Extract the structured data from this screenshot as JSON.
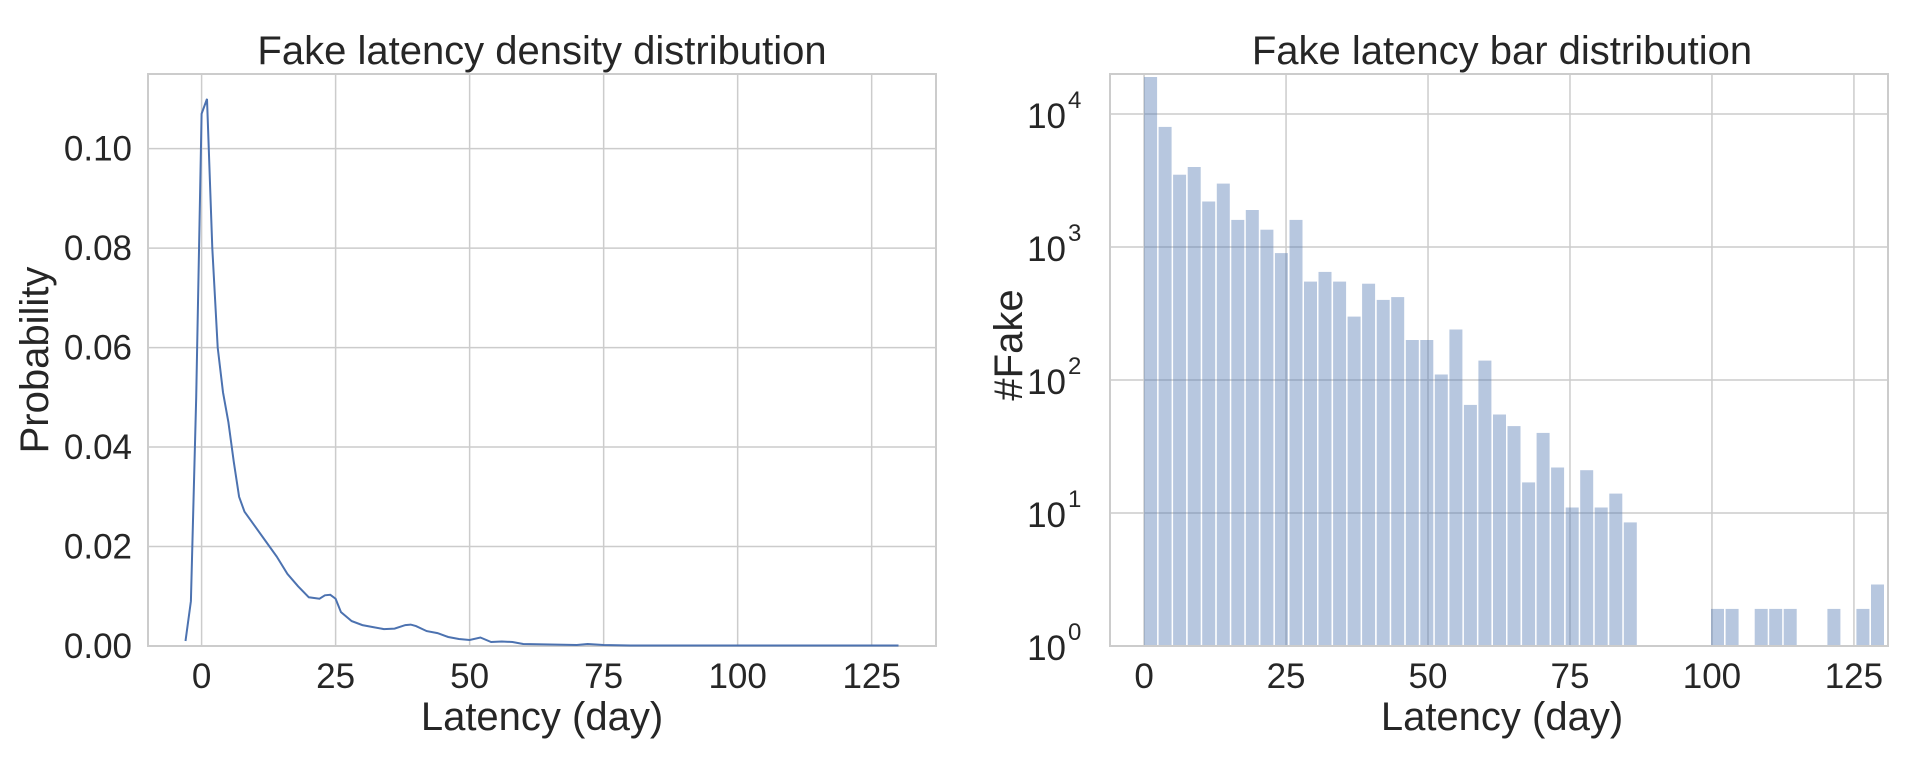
{
  "chart_data": [
    {
      "type": "line",
      "title": "Fake latency density distribution",
      "xlabel": "Latency (day)",
      "ylabel": "Probability",
      "xlim": [
        -10,
        137
      ],
      "ylim": [
        0,
        0.115
      ],
      "xticks": [
        0,
        25,
        50,
        75,
        100,
        125
      ],
      "yticks": [
        0.0,
        0.02,
        0.04,
        0.06,
        0.08,
        0.1
      ],
      "xtick_labels": [
        "0",
        "25",
        "50",
        "75",
        "100",
        "125"
      ],
      "ytick_labels": [
        "0.00",
        "0.02",
        "0.04",
        "0.06",
        "0.08",
        "0.10"
      ],
      "grid": true,
      "color": "#4c72b0",
      "series": [
        {
          "x": [
            -3,
            -2,
            -1,
            0,
            1,
            2,
            3,
            4,
            5,
            6,
            7,
            8,
            9,
            10,
            12,
            14,
            16,
            18,
            20,
            22,
            23,
            24,
            25,
            26,
            28,
            30,
            32,
            34,
            36,
            38,
            39,
            40,
            42,
            44,
            46,
            48,
            50,
            52,
            54,
            56,
            58,
            60,
            65,
            70,
            72,
            75,
            80,
            90,
            100,
            110,
            120,
            130
          ],
          "y": [
            0.001,
            0.009,
            0.05,
            0.107,
            0.11,
            0.08,
            0.06,
            0.051,
            0.045,
            0.037,
            0.03,
            0.027,
            0.0255,
            0.024,
            0.021,
            0.018,
            0.0145,
            0.012,
            0.0098,
            0.0095,
            0.0102,
            0.0103,
            0.0095,
            0.0068,
            0.005,
            0.0042,
            0.0038,
            0.0034,
            0.0035,
            0.0042,
            0.0043,
            0.004,
            0.003,
            0.0026,
            0.0018,
            0.0014,
            0.0012,
            0.0017,
            0.0008,
            0.0009,
            0.0008,
            0.0004,
            0.0003,
            0.0002,
            0.0004,
            0.0002,
            0.0001,
            0.0001,
            0.0001,
            0.0001,
            0.0001,
            0.0001
          ]
        }
      ]
    },
    {
      "type": "bar",
      "title": "Fake latency bar distribution",
      "xlabel": "Latency (day)",
      "ylabel": "#Fake",
      "y_scale": "log",
      "xlim": [
        -6,
        131
      ],
      "ylim": [
        1,
        20000
      ],
      "xticks": [
        0,
        25,
        50,
        75,
        100,
        125
      ],
      "xtick_labels": [
        "0",
        "25",
        "50",
        "75",
        "100",
        "125"
      ],
      "ytick_labels": [
        {
          "base": "10",
          "exp": "0"
        },
        {
          "base": "10",
          "exp": "1"
        },
        {
          "base": "10",
          "exp": "2"
        },
        {
          "base": "10",
          "exp": "3"
        },
        {
          "base": "10",
          "exp": "4"
        }
      ],
      "grid": true,
      "color": "#4c72b0",
      "bin_width": 2.56,
      "bin_start": 0,
      "values": [
        19000,
        8000,
        3500,
        4000,
        2200,
        3000,
        1600,
        1900,
        1350,
        900,
        1600,
        550,
        650,
        550,
        300,
        530,
        400,
        420,
        200,
        200,
        110,
        240,
        65,
        140,
        55,
        45,
        17,
        40,
        22,
        11,
        21,
        11,
        14,
        8.5,
        0,
        0,
        0,
        0,
        0,
        1.9,
        1.9,
        0,
        1.9,
        1.9,
        1.9,
        0,
        0,
        1.9,
        0,
        1.9,
        2.9
      ]
    }
  ]
}
